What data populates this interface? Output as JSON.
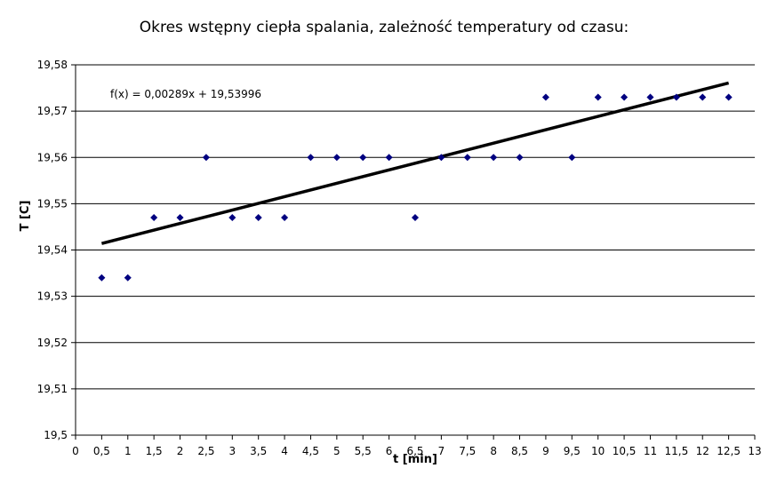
{
  "chart_data": {
    "type": "scatter",
    "title": "Okres wstępny ciepła spalania, zależność temperatury od czasu:",
    "xlabel": "t [min]",
    "ylabel": "T [C]",
    "xlim": [
      0,
      13
    ],
    "ylim": [
      19.5,
      19.58
    ],
    "x_ticks": [
      "0",
      "0,5",
      "1",
      "1,5",
      "2",
      "2,5",
      "3",
      "3,5",
      "4",
      "4,5",
      "5",
      "5,5",
      "6",
      "6,5",
      "7",
      "7,5",
      "8",
      "8,5",
      "9",
      "9,5",
      "10",
      "10,5",
      "11",
      "11,5",
      "12",
      "12,5",
      "13"
    ],
    "y_ticks": [
      "19,5",
      "19,51",
      "19,52",
      "19,53",
      "19,54",
      "19,55",
      "19,56",
      "19,57",
      "19,58"
    ],
    "grid": "horizontal",
    "series": [
      {
        "marker_color": "#000080",
        "points": [
          [
            0.5,
            19.534
          ],
          [
            1.0,
            19.534
          ],
          [
            1.5,
            19.547
          ],
          [
            2.0,
            19.547
          ],
          [
            2.5,
            19.56
          ],
          [
            3.0,
            19.547
          ],
          [
            3.5,
            19.547
          ],
          [
            4.0,
            19.547
          ],
          [
            4.5,
            19.56
          ],
          [
            5.0,
            19.56
          ],
          [
            5.5,
            19.56
          ],
          [
            6.0,
            19.56
          ],
          [
            6.5,
            19.547
          ],
          [
            7.0,
            19.56
          ],
          [
            7.5,
            19.56
          ],
          [
            8.0,
            19.56
          ],
          [
            8.5,
            19.56
          ],
          [
            9.0,
            19.573
          ],
          [
            9.5,
            19.56
          ],
          [
            10.0,
            19.573
          ],
          [
            10.5,
            19.573
          ],
          [
            11.0,
            19.573
          ],
          [
            11.5,
            19.573
          ],
          [
            12.0,
            19.573
          ],
          [
            12.5,
            19.573
          ]
        ]
      }
    ],
    "trendline": {
      "slope": 0.00289,
      "intercept": 19.53996,
      "x_range": [
        0.5,
        12.5
      ],
      "label": "f(x) = 0,00289x + 19,53996",
      "color": "#000000"
    }
  }
}
